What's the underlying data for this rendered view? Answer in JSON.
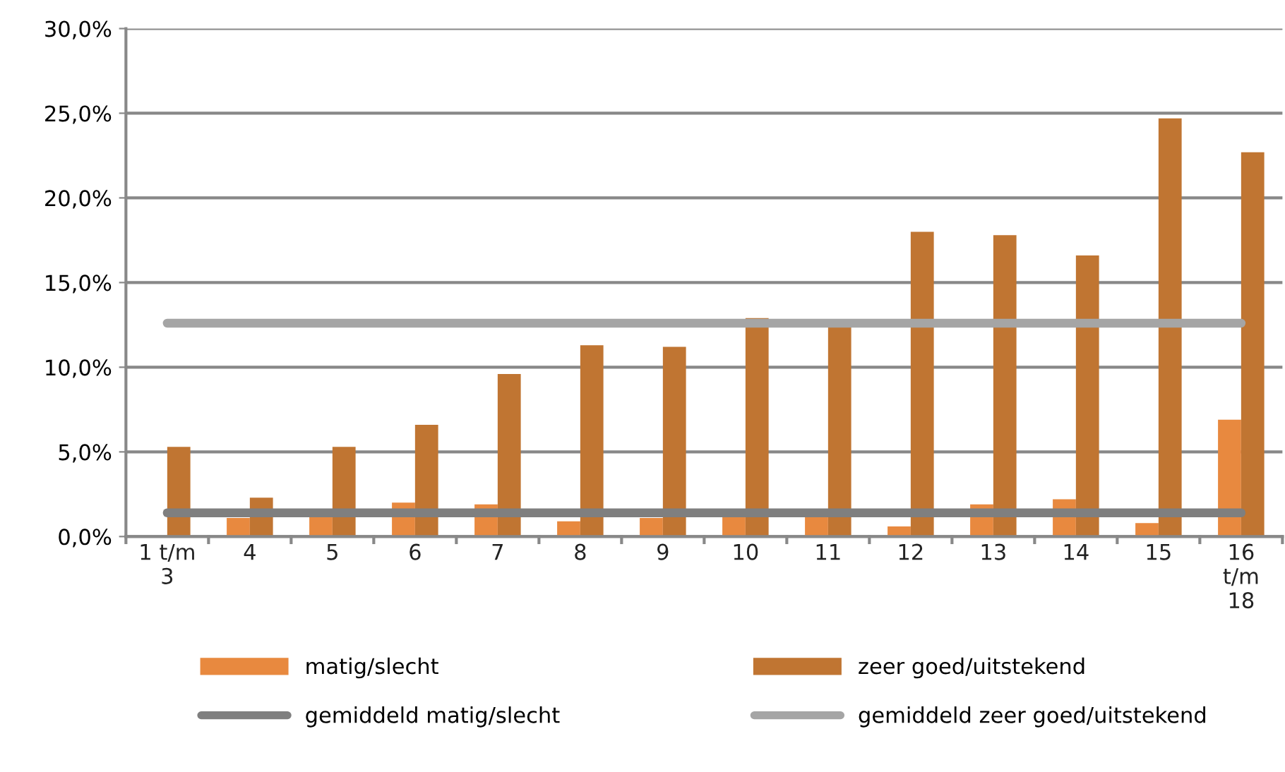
{
  "chart_data": {
    "type": "bar",
    "categories": [
      "1 t/m 3",
      "4",
      "5",
      "6",
      "7",
      "8",
      "9",
      "10",
      "11",
      "12",
      "13",
      "14",
      "15",
      "16 t/m 18"
    ],
    "series": [
      {
        "name": "matig/slecht",
        "color": "#e8893f",
        "values": [
          null,
          1.1,
          1.3,
          2.0,
          1.9,
          0.9,
          1.1,
          1.3,
          1.3,
          0.6,
          1.9,
          2.2,
          0.8,
          6.9
        ]
      },
      {
        "name": "zeer goed/uitstekend",
        "color": "#c07532",
        "values": [
          5.3,
          2.3,
          5.3,
          6.6,
          9.6,
          11.3,
          11.2,
          12.9,
          12.4,
          18.0,
          17.8,
          16.6,
          24.7,
          22.7
        ]
      },
      {
        "name": "gemiddeld matig/slecht",
        "type": "line",
        "color": "#7f7f7f",
        "values": [
          1.4,
          1.4,
          1.4,
          1.4,
          1.4,
          1.4,
          1.4,
          1.4,
          1.4,
          1.4,
          1.4,
          1.4,
          1.4,
          1.4
        ]
      },
      {
        "name": "gemiddeld zeer goed/uitstekend",
        "type": "line",
        "color": "#a5a5a5",
        "values": [
          12.6,
          12.6,
          12.6,
          12.6,
          12.6,
          12.6,
          12.6,
          12.6,
          12.6,
          12.6,
          12.6,
          12.6,
          12.6,
          12.6
        ]
      }
    ],
    "ylim": [
      0,
      30
    ],
    "yticks": [
      {
        "value": 0,
        "label": "0,0%"
      },
      {
        "value": 5,
        "label": "5,0%"
      },
      {
        "value": 10,
        "label": "10,0%"
      },
      {
        "value": 15,
        "label": "15,0%"
      },
      {
        "value": 20,
        "label": "20,0%"
      },
      {
        "value": 25,
        "label": "25,0%"
      },
      {
        "value": 30,
        "label": "30,0%"
      }
    ],
    "grid": "y",
    "legend": "bottom",
    "marker": "none",
    "line_style": "solid"
  }
}
